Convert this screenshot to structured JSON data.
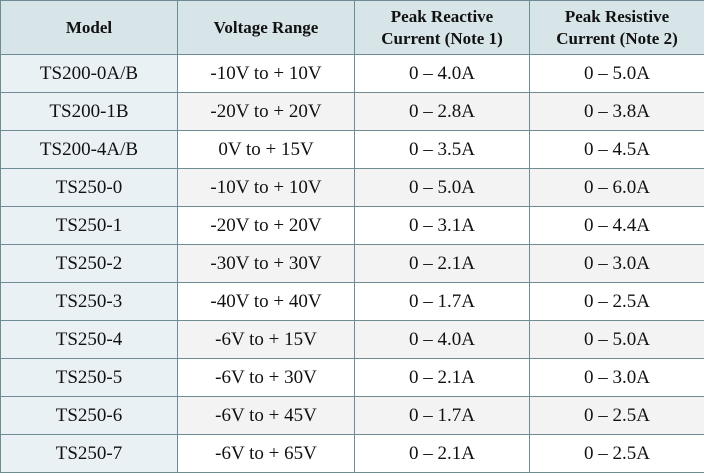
{
  "headers": {
    "model": "Model",
    "voltage": "Voltage Range",
    "reactive_l1": "Peak Reactive",
    "reactive_l2": "Current (Note 1)",
    "resistive_l1": "Peak Resistive",
    "resistive_l2": "Current (Note 2)"
  },
  "rows": [
    {
      "model": "TS200-0A/B",
      "voltage": "-10V to + 10V",
      "reactive": "0 – 4.0A",
      "resistive": "0 – 5.0A"
    },
    {
      "model": "TS200-1B",
      "voltage": "-20V to + 20V",
      "reactive": "0 – 2.8A",
      "resistive": "0 – 3.8A"
    },
    {
      "model": "TS200-4A/B",
      "voltage": "0V to + 15V",
      "reactive": "0 – 3.5A",
      "resistive": "0 – 4.5A"
    },
    {
      "model": "TS250-0",
      "voltage": "-10V to + 10V",
      "reactive": "0 – 5.0A",
      "resistive": "0 – 6.0A"
    },
    {
      "model": "TS250-1",
      "voltage": "-20V to + 20V",
      "reactive": "0 – 3.1A",
      "resistive": "0 – 4.4A"
    },
    {
      "model": "TS250-2",
      "voltage": "-30V to + 30V",
      "reactive": "0 – 2.1A",
      "resistive": "0 – 3.0A"
    },
    {
      "model": "TS250-3",
      "voltage": "-40V to + 40V",
      "reactive": "0 – 1.7A",
      "resistive": "0 – 2.5A"
    },
    {
      "model": "TS250-4",
      "voltage": "-6V to + 15V",
      "reactive": "0 – 4.0A",
      "resistive": "0 – 5.0A"
    },
    {
      "model": "TS250-5",
      "voltage": "-6V to + 30V",
      "reactive": "0 – 2.1A",
      "resistive": "0 – 3.0A"
    },
    {
      "model": "TS250-6",
      "voltage": "-6V to + 45V",
      "reactive": "0 – 1.7A",
      "resistive": "0 – 2.5A"
    },
    {
      "model": "TS250-7",
      "voltage": "-6V to + 65V",
      "reactive": "0 – 2.1A",
      "resistive": "0 – 2.5A"
    }
  ]
}
